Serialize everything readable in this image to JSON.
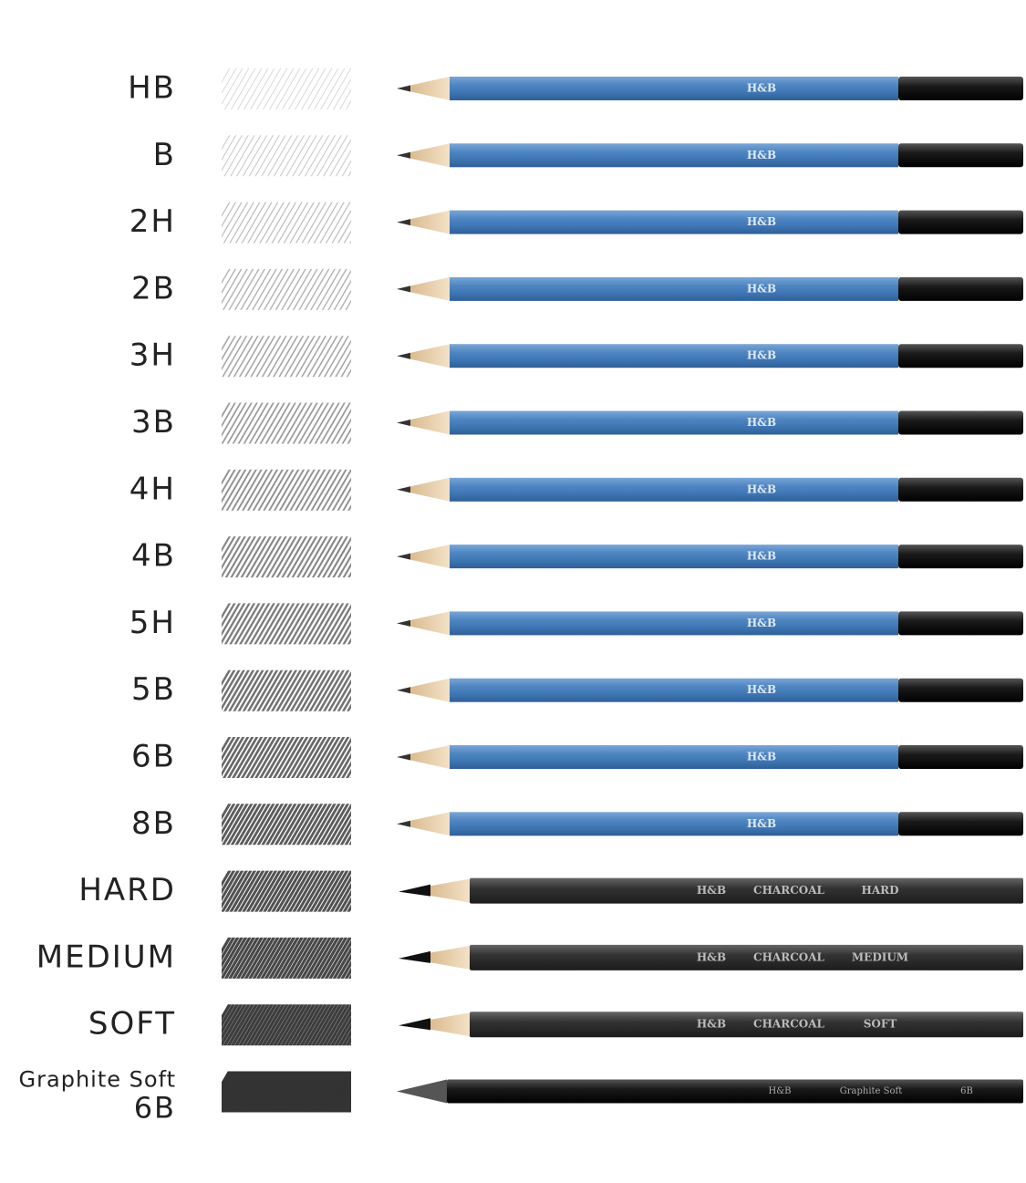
{
  "rows": [
    {
      "label": "HB",
      "imprint": [
        "H&B"
      ]
    },
    {
      "label": "B",
      "imprint": [
        "H&B"
      ]
    },
    {
      "label": "2H",
      "imprint": [
        "H&B"
      ]
    },
    {
      "label": "2B",
      "imprint": [
        "H&B"
      ]
    },
    {
      "label": "3H",
      "imprint": [
        "H&B"
      ]
    },
    {
      "label": "3B",
      "imprint": [
        "H&B"
      ]
    },
    {
      "label": "4H",
      "imprint": [
        "H&B"
      ]
    },
    {
      "label": "4B",
      "imprint": [
        "H&B"
      ]
    },
    {
      "label": "5H",
      "imprint": [
        "H&B"
      ]
    },
    {
      "label": "5B",
      "imprint": [
        "H&B"
      ]
    },
    {
      "label": "6B",
      "imprint": [
        "H&B"
      ]
    },
    {
      "label": "8B",
      "imprint": [
        "H&B"
      ]
    },
    {
      "label": "HARD",
      "imprint": [
        "H&B",
        "CHARCOAL",
        "HARD"
      ]
    },
    {
      "label": "MEDIUM",
      "imprint": [
        "H&B",
        "CHARCOAL",
        "MEDIUM"
      ]
    },
    {
      "label": "SOFT",
      "imprint": [
        "H&B",
        "CHARCOAL",
        "SOFT"
      ]
    },
    {
      "label": "Graphite Soft",
      "sublabel": "6B",
      "imprint": [
        "H&B",
        "Graphite Soft",
        "6B"
      ]
    }
  ]
}
